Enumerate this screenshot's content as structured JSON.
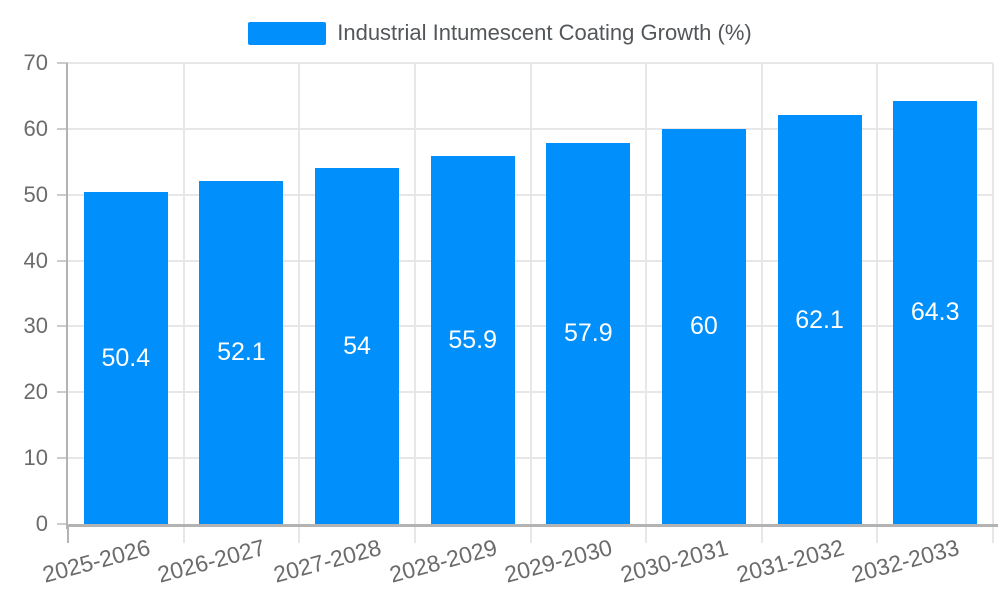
{
  "legend": {
    "label": "Industrial Intumescent Coating Growth (%)"
  },
  "chart_data": {
    "type": "bar",
    "title": "Industrial Intumescent Coating Growth (%)",
    "series_name": "Industrial Intumescent Coating Growth (%)",
    "categories": [
      "2025-2026",
      "2026-2027",
      "2027-2028",
      "2028-2029",
      "2029-2030",
      "2030-2031",
      "2031-2032",
      "2032-2033"
    ],
    "values": [
      50.4,
      52.1,
      54,
      55.9,
      57.9,
      60,
      62.1,
      64.3
    ],
    "data_labels": [
      "50.4",
      "52.1",
      "54",
      "55.9",
      "57.9",
      "60",
      "62.1",
      "64.3"
    ],
    "xlabel": "",
    "ylabel": "",
    "ylim": [
      0,
      70
    ],
    "ytick_interval": 10,
    "ytick_labels": [
      "0",
      "10",
      "20",
      "30",
      "40",
      "50",
      "60",
      "70"
    ],
    "grid": true,
    "legend_position": "top",
    "x_label_rotation": -15,
    "colors": {
      "bar": "#008FFB",
      "grid": "#e7e7e7",
      "axis": "#b3b3b3",
      "tick_label": "#6b6b6b",
      "legend_text": "#54575a",
      "data_label": "#ffffff",
      "background": "#ffffff"
    }
  }
}
